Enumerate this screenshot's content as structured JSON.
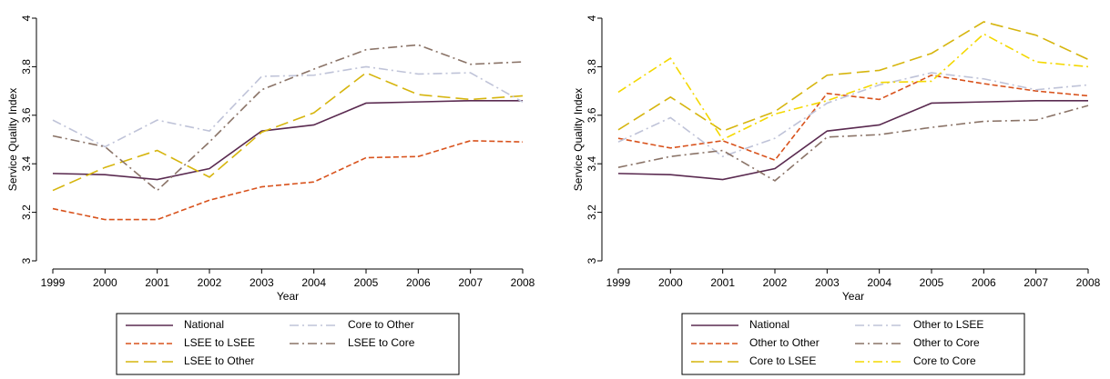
{
  "chart_data": [
    {
      "type": "line",
      "ylabel": "Service Quality Index",
      "xlabel": "Year",
      "x": [
        1999,
        2000,
        2001,
        2002,
        2003,
        2004,
        2005,
        2006,
        2007,
        2008
      ],
      "xlim": [
        1999,
        2008
      ],
      "xticks": [
        1999,
        2000,
        2001,
        2002,
        2003,
        2004,
        2005,
        2006,
        2007,
        2008
      ],
      "ylim": [
        3,
        4
      ],
      "yticks": [
        3,
        3.2,
        3.4,
        3.6,
        3.8,
        4
      ],
      "grid": false,
      "series": [
        {
          "name": "National",
          "color": "#5a2a50",
          "linestyle": "solid",
          "values": [
            3.36,
            3.355,
            3.335,
            3.38,
            3.535,
            3.56,
            3.65,
            3.655,
            3.66,
            3.66
          ]
        },
        {
          "name": "LSEE to LSEE",
          "color": "#d8521c",
          "linestyle": "dashed",
          "values": [
            3.215,
            3.17,
            3.17,
            3.25,
            3.305,
            3.325,
            3.425,
            3.43,
            3.495,
            3.49
          ]
        },
        {
          "name": "LSEE to Other",
          "color": "#d6b50e",
          "linestyle": "longdash",
          "values": [
            3.29,
            3.385,
            3.455,
            3.345,
            3.53,
            3.61,
            3.775,
            3.685,
            3.665,
            3.68
          ]
        },
        {
          "name": "Core to Other",
          "color": "#bfc3d8",
          "linestyle": "dashdot",
          "values": [
            3.58,
            3.47,
            3.58,
            3.535,
            3.76,
            3.765,
            3.8,
            3.77,
            3.775,
            3.655
          ]
        },
        {
          "name": "LSEE to Core",
          "color": "#8a7367",
          "linestyle": "dashdot",
          "values": [
            3.515,
            3.47,
            3.29,
            3.49,
            3.705,
            3.79,
            3.87,
            3.89,
            3.81,
            3.82
          ]
        }
      ]
    },
    {
      "type": "line",
      "ylabel": "Service Quality Index",
      "xlabel": "Year",
      "x": [
        1999,
        2000,
        2001,
        2002,
        2003,
        2004,
        2005,
        2006,
        2007,
        2008
      ],
      "xlim": [
        1999,
        2008
      ],
      "xticks": [
        1999,
        2000,
        2001,
        2002,
        2003,
        2004,
        2005,
        2006,
        2007,
        2008
      ],
      "ylim": [
        3,
        4
      ],
      "yticks": [
        3,
        3.2,
        3.4,
        3.6,
        3.8,
        4
      ],
      "grid": false,
      "series": [
        {
          "name": "National",
          "color": "#5a2a50",
          "linestyle": "solid",
          "values": [
            3.36,
            3.355,
            3.335,
            3.38,
            3.535,
            3.56,
            3.65,
            3.655,
            3.66,
            3.66
          ]
        },
        {
          "name": "Other to Other",
          "color": "#d8521c",
          "linestyle": "dashed",
          "values": [
            3.505,
            3.465,
            3.495,
            3.415,
            3.69,
            3.665,
            3.765,
            3.73,
            3.7,
            3.68
          ]
        },
        {
          "name": "Core to LSEE",
          "color": "#d6b50e",
          "linestyle": "longdash",
          "values": [
            3.54,
            3.675,
            3.535,
            3.615,
            3.765,
            3.785,
            3.855,
            3.985,
            3.93,
            3.83
          ]
        },
        {
          "name": "Other to LSEE",
          "color": "#bfc3d8",
          "linestyle": "dashdot",
          "values": [
            3.49,
            3.59,
            3.43,
            3.505,
            3.65,
            3.725,
            3.775,
            3.75,
            3.705,
            3.725
          ]
        },
        {
          "name": "Other to Core",
          "color": "#8a7367",
          "linestyle": "dashdot",
          "values": [
            3.385,
            3.43,
            3.455,
            3.33,
            3.51,
            3.52,
            3.55,
            3.575,
            3.58,
            3.64
          ]
        },
        {
          "name": "Core to Core",
          "color": "#f4d800",
          "linestyle": "dashdot",
          "values": [
            3.695,
            3.835,
            3.5,
            3.605,
            3.66,
            3.735,
            3.74,
            3.935,
            3.82,
            3.8
          ]
        }
      ]
    }
  ]
}
